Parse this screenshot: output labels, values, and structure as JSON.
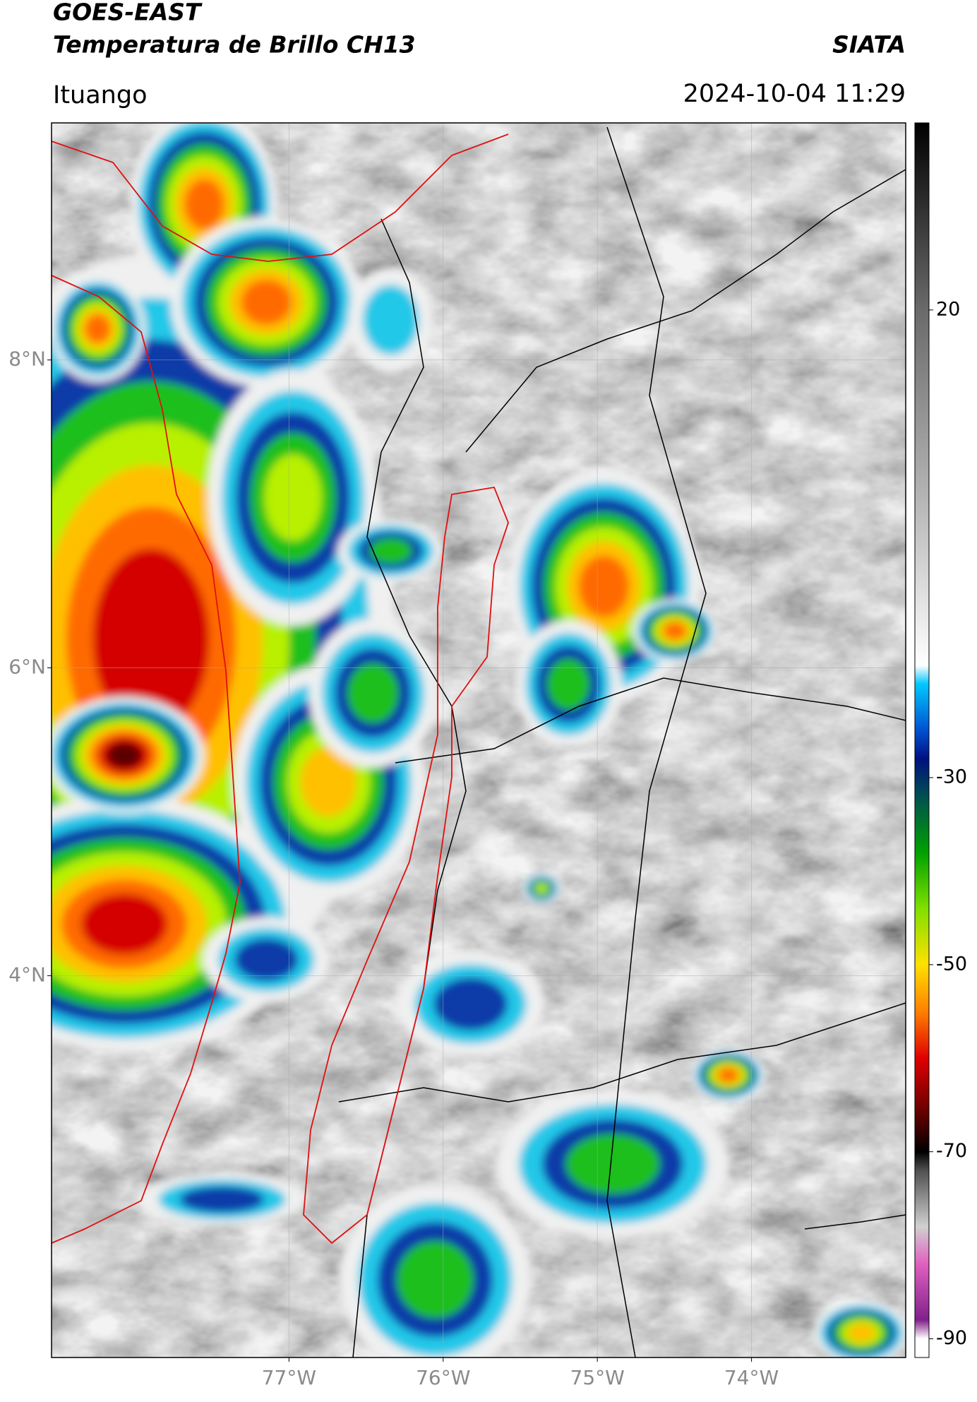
{
  "header": {
    "title": "GOES-EAST",
    "subtitle": "Temperatura de Brillo CH13",
    "agency": "SIATA",
    "location": "Ituango",
    "timestamp": "2024-10-04 11:29"
  },
  "map": {
    "lon_range": [
      -78.54,
      -73.0
    ],
    "lat_range": [
      1.52,
      9.54
    ],
    "lat_ticks": [
      {
        "value": 8,
        "label": "8°N"
      },
      {
        "value": 6,
        "label": "6°N"
      },
      {
        "value": 4,
        "label": "4°N"
      }
    ],
    "lon_ticks": [
      {
        "value": -77,
        "label": "77°W"
      },
      {
        "value": -76,
        "label": "76°W"
      },
      {
        "value": -75,
        "label": "75°W"
      },
      {
        "value": -74,
        "label": "74°W"
      }
    ]
  },
  "colorbar": {
    "range": [
      -92,
      40
    ],
    "ticks": [
      20,
      -30,
      -50,
      -70,
      -90
    ],
    "colorscale": [
      [
        40,
        "#000000"
      ],
      [
        20,
        "#6a6a6a"
      ],
      [
        0,
        "#b4b4b4"
      ],
      [
        -18,
        "#ffffff"
      ],
      [
        -20,
        "#00c8ff"
      ],
      [
        -25,
        "#0050d0"
      ],
      [
        -28,
        "#001080"
      ],
      [
        -32,
        "#005050"
      ],
      [
        -38,
        "#00a000"
      ],
      [
        -44,
        "#80e000"
      ],
      [
        -50,
        "#ffe000"
      ],
      [
        -55,
        "#ff8000"
      ],
      [
        -60,
        "#e00000"
      ],
      [
        -66,
        "#600000"
      ],
      [
        -70,
        "#000000"
      ],
      [
        -72,
        "#505050"
      ],
      [
        -78,
        "#d0d0d0"
      ],
      [
        -82,
        "#e060c0"
      ],
      [
        -88,
        "#80208a"
      ],
      [
        -90,
        "#ffffff"
      ],
      [
        -92,
        "#ffffff"
      ]
    ]
  }
}
